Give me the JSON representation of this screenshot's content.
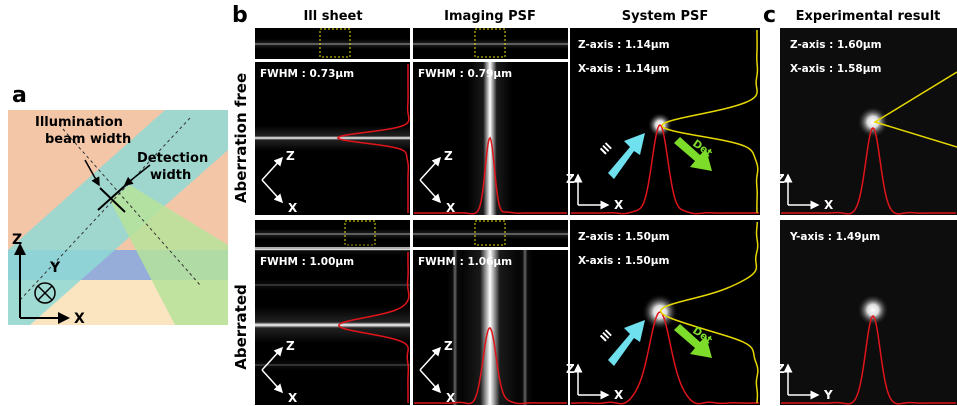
{
  "panel_a": {
    "label": "a",
    "illumination_label": [
      "Illumination",
      "beam width"
    ],
    "detection_label": [
      "Detection",
      "width"
    ],
    "axes": {
      "z": "Z",
      "y": "Y",
      "x": "X"
    }
  },
  "panel_b": {
    "label": "b",
    "columns": [
      "Ill sheet",
      "Imaging PSF",
      "System PSF"
    ],
    "rows": [
      {
        "label": "Aberration free",
        "ill_fwhm": "FWHM : 0.73μm",
        "imaging_fwhm": "FWHM : 0.79μm",
        "system": [
          "Z-axis : 1.14μm",
          "X-axis : 1.14μm"
        ]
      },
      {
        "label": "Aberrated",
        "ill_fwhm": "FWHM : 1.00μm",
        "imaging_fwhm": "FWHM : 1.06μm",
        "system": [
          "Z-axis : 1.50μm",
          "X-axis : 1.50μm"
        ]
      }
    ],
    "axis_z": "Z",
    "axis_x": "X",
    "ill_arrow": "Ill",
    "det_arrow": "Det"
  },
  "panel_c": {
    "label": "c",
    "title": "Experimental result",
    "rows": [
      {
        "measures": [
          "Z-axis : 1.60μm",
          "X-axis : 1.58μm"
        ],
        "axes": [
          "Z",
          "X"
        ]
      },
      {
        "measures": [
          "Y-axis : 1.49μm"
        ],
        "axes": [
          "Z",
          "Y"
        ]
      }
    ]
  }
}
